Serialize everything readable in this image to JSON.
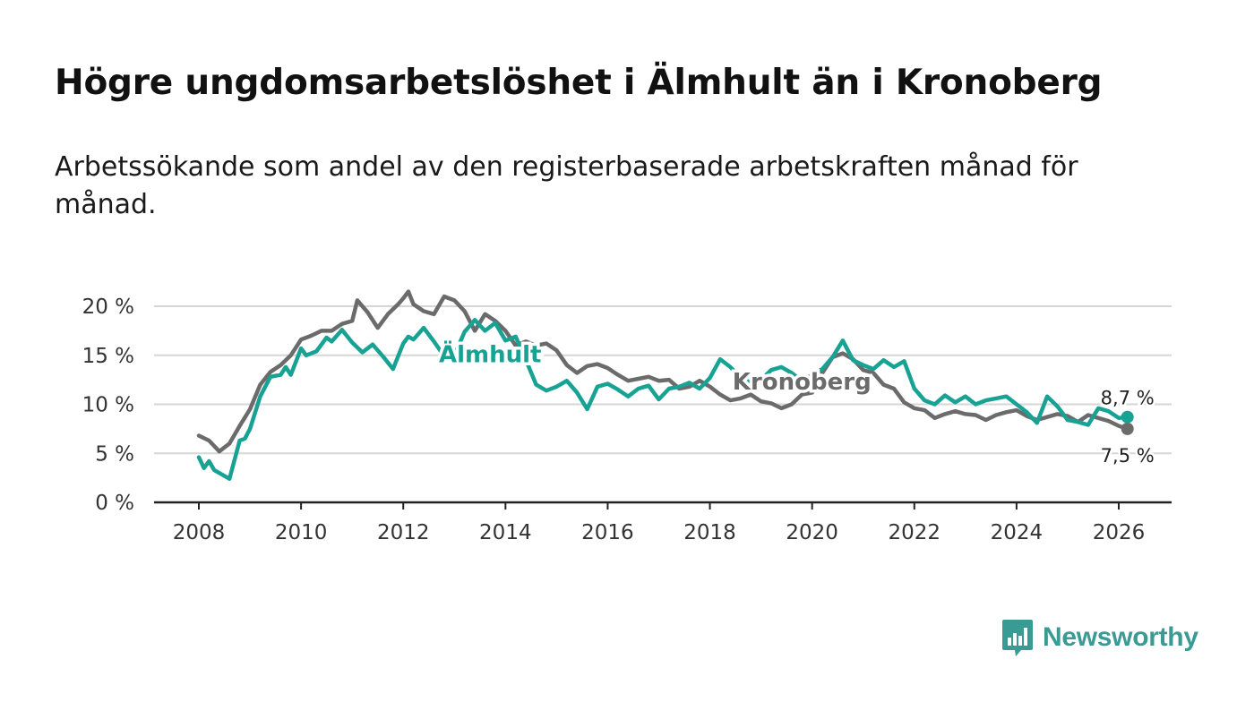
{
  "title": "Högre ungdomsarbetslöshet i Älmhult än i Kronoberg",
  "subtitle": "Arbetssökande som andel av den registerbaserade arbetskraften månad för månad.",
  "logo": {
    "text": "Newsworthy",
    "icon": "newsworthy-logo-icon",
    "color": "#3a9a94"
  },
  "chart_data": {
    "type": "line",
    "title": "Högre ungdomsarbetslöshet i Älmhult än i Kronoberg",
    "xlabel": "",
    "ylabel": "",
    "xlim": [
      2007.1,
      2027.0
    ],
    "ylim": [
      0,
      20
    ],
    "grid": true,
    "x_ticks": [
      2008,
      2010,
      2012,
      2014,
      2016,
      2018,
      2020,
      2022,
      2024,
      2026
    ],
    "x_tick_labels": [
      "2008",
      "2010",
      "2012",
      "2014",
      "2016",
      "2018",
      "2020",
      "2022",
      "2024",
      "2026"
    ],
    "y_ticks": [
      0,
      5,
      10,
      15,
      20
    ],
    "y_tick_labels": [
      "0 %",
      "5 %",
      "10 %",
      "15 %",
      "20 %"
    ],
    "series": [
      {
        "name": "Kronoberg",
        "label": "Kronoberg",
        "color": "#6b6b6b",
        "end_label": "7,5 %",
        "points": [
          [
            2008.0,
            6.8
          ],
          [
            2008.2,
            6.3
          ],
          [
            2008.4,
            5.2
          ],
          [
            2008.6,
            6.0
          ],
          [
            2008.8,
            7.8
          ],
          [
            2009.0,
            9.5
          ],
          [
            2009.2,
            12.0
          ],
          [
            2009.4,
            13.3
          ],
          [
            2009.6,
            14.0
          ],
          [
            2009.8,
            15.0
          ],
          [
            2010.0,
            16.6
          ],
          [
            2010.2,
            17.0
          ],
          [
            2010.4,
            17.5
          ],
          [
            2010.6,
            17.5
          ],
          [
            2010.8,
            18.2
          ],
          [
            2011.0,
            18.5
          ],
          [
            2011.1,
            20.6
          ],
          [
            2011.3,
            19.4
          ],
          [
            2011.5,
            17.8
          ],
          [
            2011.7,
            19.2
          ],
          [
            2011.9,
            20.2
          ],
          [
            2012.0,
            20.8
          ],
          [
            2012.1,
            21.5
          ],
          [
            2012.2,
            20.2
          ],
          [
            2012.4,
            19.5
          ],
          [
            2012.6,
            19.2
          ],
          [
            2012.8,
            21.0
          ],
          [
            2013.0,
            20.6
          ],
          [
            2013.2,
            19.5
          ],
          [
            2013.4,
            17.5
          ],
          [
            2013.6,
            19.2
          ],
          [
            2013.8,
            18.5
          ],
          [
            2014.0,
            17.5
          ],
          [
            2014.2,
            16.0
          ],
          [
            2014.4,
            16.4
          ],
          [
            2014.6,
            16.0
          ],
          [
            2014.8,
            16.2
          ],
          [
            2015.0,
            15.5
          ],
          [
            2015.2,
            14.0
          ],
          [
            2015.4,
            13.2
          ],
          [
            2015.6,
            13.9
          ],
          [
            2015.8,
            14.1
          ],
          [
            2016.0,
            13.7
          ],
          [
            2016.2,
            13.0
          ],
          [
            2016.4,
            12.4
          ],
          [
            2016.6,
            12.6
          ],
          [
            2016.8,
            12.8
          ],
          [
            2017.0,
            12.4
          ],
          [
            2017.2,
            12.5
          ],
          [
            2017.4,
            11.6
          ],
          [
            2017.6,
            11.8
          ],
          [
            2017.8,
            12.4
          ],
          [
            2018.0,
            11.8
          ],
          [
            2018.2,
            11.0
          ],
          [
            2018.4,
            10.4
          ],
          [
            2018.6,
            10.6
          ],
          [
            2018.8,
            11.0
          ],
          [
            2019.0,
            10.3
          ],
          [
            2019.2,
            10.1
          ],
          [
            2019.4,
            9.6
          ],
          [
            2019.6,
            10.0
          ],
          [
            2019.8,
            11.0
          ],
          [
            2020.0,
            11.2
          ],
          [
            2020.2,
            13.2
          ],
          [
            2020.4,
            14.8
          ],
          [
            2020.6,
            15.2
          ],
          [
            2020.8,
            14.6
          ],
          [
            2021.0,
            13.5
          ],
          [
            2021.2,
            13.2
          ],
          [
            2021.4,
            12.0
          ],
          [
            2021.6,
            11.6
          ],
          [
            2021.8,
            10.2
          ],
          [
            2022.0,
            9.6
          ],
          [
            2022.2,
            9.4
          ],
          [
            2022.4,
            8.6
          ],
          [
            2022.6,
            9.0
          ],
          [
            2022.8,
            9.3
          ],
          [
            2023.0,
            9.0
          ],
          [
            2023.2,
            8.9
          ],
          [
            2023.4,
            8.4
          ],
          [
            2023.6,
            8.9
          ],
          [
            2023.8,
            9.2
          ],
          [
            2024.0,
            9.4
          ],
          [
            2024.2,
            8.8
          ],
          [
            2024.4,
            8.4
          ],
          [
            2024.6,
            8.7
          ],
          [
            2024.8,
            9.0
          ],
          [
            2025.0,
            8.8
          ],
          [
            2025.2,
            8.2
          ],
          [
            2025.4,
            8.9
          ],
          [
            2025.6,
            8.6
          ],
          [
            2025.8,
            8.3
          ],
          [
            2026.0,
            7.8
          ],
          [
            2026.17,
            7.5
          ]
        ]
      },
      {
        "name": "Älmhult",
        "label": "Älmhult",
        "color": "#18a294",
        "end_label": "8,7 %",
        "points": [
          [
            2008.0,
            4.6
          ],
          [
            2008.1,
            3.5
          ],
          [
            2008.2,
            4.2
          ],
          [
            2008.3,
            3.3
          ],
          [
            2008.5,
            2.7
          ],
          [
            2008.6,
            2.4
          ],
          [
            2008.8,
            6.3
          ],
          [
            2008.9,
            6.5
          ],
          [
            2009.0,
            7.5
          ],
          [
            2009.2,
            10.8
          ],
          [
            2009.4,
            12.8
          ],
          [
            2009.6,
            13.0
          ],
          [
            2009.7,
            13.8
          ],
          [
            2009.8,
            13.0
          ],
          [
            2010.0,
            15.7
          ],
          [
            2010.1,
            15.0
          ],
          [
            2010.3,
            15.4
          ],
          [
            2010.5,
            16.8
          ],
          [
            2010.6,
            16.4
          ],
          [
            2010.8,
            17.6
          ],
          [
            2011.0,
            16.3
          ],
          [
            2011.2,
            15.3
          ],
          [
            2011.4,
            16.1
          ],
          [
            2011.6,
            14.9
          ],
          [
            2011.8,
            13.6
          ],
          [
            2012.0,
            16.2
          ],
          [
            2012.1,
            16.9
          ],
          [
            2012.2,
            16.6
          ],
          [
            2012.4,
            17.8
          ],
          [
            2012.6,
            16.4
          ],
          [
            2012.8,
            14.9
          ],
          [
            2013.0,
            15.0
          ],
          [
            2013.2,
            17.4
          ],
          [
            2013.4,
            18.6
          ],
          [
            2013.6,
            17.5
          ],
          [
            2013.8,
            18.3
          ],
          [
            2014.0,
            16.5
          ],
          [
            2014.2,
            16.9
          ],
          [
            2014.4,
            14.5
          ],
          [
            2014.6,
            12.0
          ],
          [
            2014.8,
            11.4
          ],
          [
            2015.0,
            11.8
          ],
          [
            2015.2,
            12.4
          ],
          [
            2015.4,
            11.2
          ],
          [
            2015.6,
            9.5
          ],
          [
            2015.8,
            11.8
          ],
          [
            2016.0,
            12.1
          ],
          [
            2016.2,
            11.5
          ],
          [
            2016.4,
            10.8
          ],
          [
            2016.6,
            11.6
          ],
          [
            2016.8,
            11.9
          ],
          [
            2017.0,
            10.5
          ],
          [
            2017.2,
            11.6
          ],
          [
            2017.4,
            11.8
          ],
          [
            2017.6,
            12.2
          ],
          [
            2017.8,
            11.6
          ],
          [
            2018.0,
            12.7
          ],
          [
            2018.2,
            14.6
          ],
          [
            2018.4,
            13.8
          ],
          [
            2018.6,
            12.7
          ],
          [
            2018.8,
            12.2
          ],
          [
            2019.0,
            12.5
          ],
          [
            2019.2,
            13.5
          ],
          [
            2019.4,
            13.8
          ],
          [
            2019.6,
            13.2
          ],
          [
            2019.8,
            12.4
          ],
          [
            2020.0,
            13.0
          ],
          [
            2020.2,
            13.6
          ],
          [
            2020.4,
            14.8
          ],
          [
            2020.6,
            16.5
          ],
          [
            2020.8,
            14.5
          ],
          [
            2021.0,
            14.0
          ],
          [
            2021.2,
            13.6
          ],
          [
            2021.4,
            14.5
          ],
          [
            2021.6,
            13.8
          ],
          [
            2021.8,
            14.4
          ],
          [
            2022.0,
            11.6
          ],
          [
            2022.2,
            10.4
          ],
          [
            2022.4,
            10.0
          ],
          [
            2022.6,
            10.9
          ],
          [
            2022.8,
            10.2
          ],
          [
            2023.0,
            10.8
          ],
          [
            2023.2,
            10.0
          ],
          [
            2023.4,
            10.4
          ],
          [
            2023.6,
            10.6
          ],
          [
            2023.8,
            10.8
          ],
          [
            2024.0,
            10.0
          ],
          [
            2024.2,
            9.2
          ],
          [
            2024.4,
            8.1
          ],
          [
            2024.6,
            10.8
          ],
          [
            2024.8,
            9.8
          ],
          [
            2025.0,
            8.4
          ],
          [
            2025.2,
            8.2
          ],
          [
            2025.4,
            7.9
          ],
          [
            2025.6,
            9.6
          ],
          [
            2025.8,
            9.3
          ],
          [
            2026.0,
            8.6
          ],
          [
            2026.17,
            8.7
          ]
        ]
      }
    ],
    "annotations": [
      {
        "text": "Älmhult",
        "series": "Älmhult",
        "x": 2013.7,
        "y": 14.3
      },
      {
        "text": "Kronoberg",
        "series": "Kronoberg",
        "x": 2019.8,
        "y": 11.5
      }
    ]
  }
}
